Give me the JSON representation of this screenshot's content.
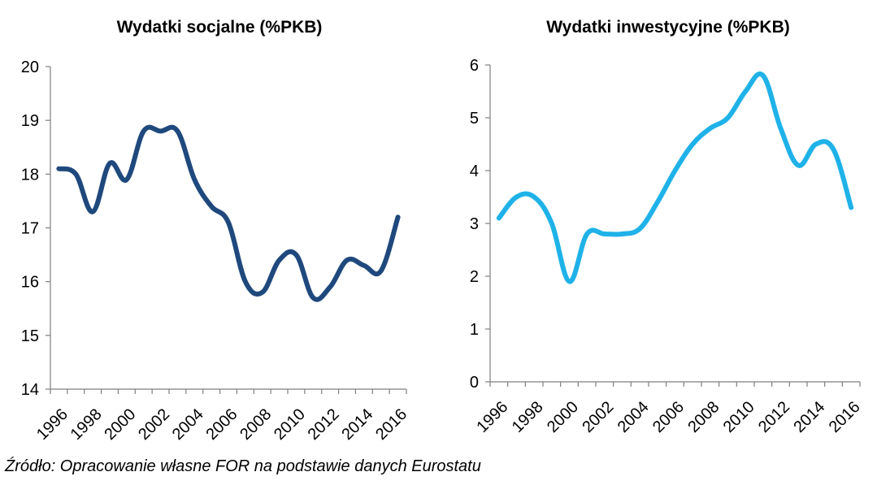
{
  "chart_data": [
    {
      "type": "line",
      "title": "Wydatki socjalne (%PKB)",
      "xlabel": "",
      "ylabel": "",
      "ylim": [
        14,
        20
      ],
      "yticks": [
        "14",
        "15",
        "16",
        "17",
        "18",
        "19",
        "20"
      ],
      "xticks": [
        "1996",
        "1998",
        "2000",
        "2002",
        "2004",
        "2006",
        "2008",
        "2010",
        "2012",
        "2014",
        "2016"
      ],
      "grid": false,
      "smooth": true,
      "color": "#1f497d",
      "series": [
        {
          "x": [
            1996,
            1997,
            1998,
            1999,
            2000,
            2001,
            2002,
            2003,
            2004,
            2005,
            2006,
            2007,
            2008,
            2009,
            2010,
            2011,
            2012,
            2013,
            2014,
            2015,
            2016
          ],
          "values": [
            18.1,
            18.0,
            17.3,
            18.2,
            17.9,
            18.8,
            18.8,
            18.8,
            17.9,
            17.4,
            17.1,
            16.0,
            15.8,
            16.4,
            16.5,
            15.7,
            15.9,
            16.4,
            16.3,
            16.2,
            17.2
          ]
        }
      ]
    },
    {
      "type": "line",
      "title": "Wydatki inwestycyjne (%PKB)",
      "xlabel": "",
      "ylabel": "",
      "ylim": [
        0,
        6
      ],
      "yticks": [
        "0",
        "1",
        "2",
        "3",
        "4",
        "5",
        "6"
      ],
      "xticks": [
        "1996",
        "1998",
        "2000",
        "2002",
        "2004",
        "2006",
        "2008",
        "2010",
        "2012",
        "2014",
        "2016"
      ],
      "grid": false,
      "smooth": true,
      "color": "#1fb2e8",
      "series": [
        {
          "x": [
            1996,
            1997,
            1998,
            1999,
            2000,
            2001,
            2002,
            2003,
            2004,
            2005,
            2006,
            2007,
            2008,
            2009,
            2010,
            2011,
            2012,
            2013,
            2014,
            2015,
            2016
          ],
          "values": [
            3.1,
            3.5,
            3.5,
            3.0,
            1.9,
            2.8,
            2.8,
            2.8,
            2.9,
            3.4,
            4.0,
            4.5,
            4.8,
            5.0,
            5.5,
            5.8,
            4.8,
            4.1,
            4.5,
            4.4,
            3.3
          ]
        }
      ]
    }
  ],
  "source": "Źródło: Opracowanie własne FOR na podstawie danych Eurostatu"
}
